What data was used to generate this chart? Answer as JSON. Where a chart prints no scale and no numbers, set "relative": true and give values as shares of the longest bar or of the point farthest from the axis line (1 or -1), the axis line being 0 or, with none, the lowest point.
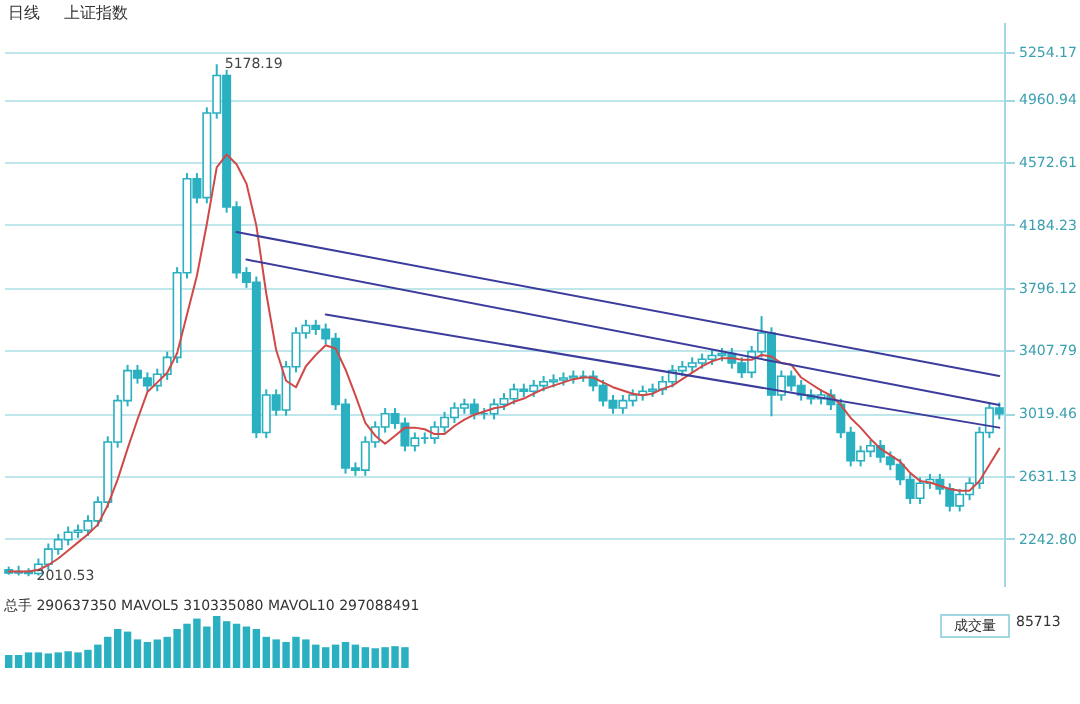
{
  "chart_data": [
    {
      "type": "candlestick",
      "title": "上证指数",
      "annotations": [
        "日线",
        "5178.19",
        "2010.53"
      ],
      "categories": [
        null,
        null,
        null,
        null,
        null,
        null,
        null,
        null,
        null,
        null,
        null,
        null,
        null,
        null,
        null,
        null,
        null,
        null,
        null,
        null,
        null,
        null,
        null,
        null,
        null,
        null,
        null,
        null,
        null,
        null,
        null,
        null,
        null,
        null,
        null,
        null,
        null,
        null,
        null,
        null,
        null,
        null,
        null,
        null,
        null,
        null,
        null,
        null,
        null,
        null,
        null,
        null,
        null,
        null,
        null,
        null,
        null,
        null,
        null,
        null,
        null,
        null,
        null,
        null,
        null,
        null,
        null,
        null,
        null,
        null,
        null,
        null,
        null,
        null,
        null,
        null,
        null,
        null,
        null,
        null,
        null,
        null,
        null,
        null,
        null,
        null,
        null,
        null,
        null,
        null,
        null,
        null,
        null,
        null,
        null,
        null,
        null,
        null,
        null,
        null,
        null
      ],
      "series": [
        {
          "type": "candlestick",
          "color": "#2ab0c0",
          "ohlc": [
            [
              2050,
              2070,
              2020,
              2030
            ],
            [
              2030,
              2075,
              2015,
              2040
            ],
            [
              2040,
              2060,
              2010.53,
              2027
            ],
            [
              2027,
              2120,
              2015,
              2085
            ],
            [
              2085,
              2213,
              2050,
              2178
            ],
            [
              2178,
              2272,
              2143,
              2237
            ],
            [
              2237,
              2318,
              2202,
              2283
            ],
            [
              2283,
              2330,
              2248,
              2295
            ],
            [
              2295,
              2388,
              2260,
              2353
            ],
            [
              2353,
              2504,
              2318,
              2469
            ],
            [
              2469,
              2876,
              2434,
              2841
            ],
            [
              2841,
              3132,
              2806,
              3097
            ],
            [
              3097,
              3318,
              3062,
              3283
            ],
            [
              3283,
              3318,
              3202,
              3237
            ],
            [
              3237,
              3272,
              3155,
              3190
            ],
            [
              3190,
              3295,
              3155,
              3260
            ],
            [
              3260,
              3400,
              3225,
              3365
            ],
            [
              3365,
              3923,
              3330,
              3888
            ],
            [
              3888,
              4505,
              3853,
              4470
            ],
            [
              4470,
              4505,
              4318,
              4353
            ],
            [
              4353,
              4912,
              4318,
              4877
            ],
            [
              4877,
              5178.19,
              4842,
              5109
            ],
            [
              5109,
              5144,
              4260,
              4295
            ],
            [
              4295,
              4330,
              3853,
              3888
            ],
            [
              3888,
              3923,
              3795,
              3830
            ],
            [
              3830,
              3865,
              2865,
              2900
            ],
            [
              2900,
              3167,
              2865,
              3132
            ],
            [
              3132,
              3167,
              3004,
              3039
            ],
            [
              3039,
              3342,
              3004,
              3307
            ],
            [
              3307,
              3551,
              3272,
              3516
            ],
            [
              3516,
              3597,
              3481,
              3562
            ],
            [
              3562,
              3597,
              3504,
              3539
            ],
            [
              3539,
              3574,
              3446,
              3481
            ],
            [
              3481,
              3516,
              3039,
              3074
            ],
            [
              3074,
              3109,
              2645,
              2680
            ],
            [
              2680,
              2715,
              2632,
              2667
            ],
            [
              2667,
              2876,
              2632,
              2841
            ],
            [
              2841,
              2969,
              2806,
              2934
            ],
            [
              2934,
              3051,
              2899,
              3016
            ],
            [
              3016,
              3051,
              2922,
              2957
            ],
            [
              2957,
              2992,
              2783,
              2818
            ],
            [
              2818,
              2900,
              2783,
              2865
            ],
            [
              2865,
              2900,
              2830,
              2865
            ],
            [
              2865,
              2969,
              2830,
              2934
            ],
            [
              2934,
              3028,
              2899,
              2993
            ],
            [
              2993,
              3086,
              2958,
              3051
            ],
            [
              3051,
              3109,
              3016,
              3074
            ],
            [
              3074,
              3109,
              2981,
              3016
            ],
            [
              3016,
              3051,
              2981,
              3016
            ],
            [
              3016,
              3109,
              2981,
              3074
            ],
            [
              3074,
              3144,
              3039,
              3109
            ],
            [
              3109,
              3202,
              3074,
              3167
            ],
            [
              3167,
              3202,
              3120,
              3155
            ],
            [
              3155,
              3225,
              3120,
              3190
            ],
            [
              3190,
              3249,
              3155,
              3214
            ],
            [
              3214,
              3260,
              3179,
              3225
            ],
            [
              3225,
              3272,
              3190,
              3237
            ],
            [
              3237,
              3283,
              3202,
              3248
            ],
            [
              3248,
              3283,
              3213,
              3248
            ],
            [
              3248,
              3283,
              3155,
              3190
            ],
            [
              3190,
              3225,
              3062,
              3097
            ],
            [
              3097,
              3132,
              3016,
              3051
            ],
            [
              3051,
              3132,
              3016,
              3097
            ],
            [
              3097,
              3167,
              3062,
              3132
            ],
            [
              3132,
              3190,
              3097,
              3155
            ],
            [
              3155,
              3202,
              3120,
              3167
            ],
            [
              3167,
              3249,
              3132,
              3214
            ],
            [
              3214,
              3318,
              3179,
              3283
            ],
            [
              3283,
              3342,
              3248,
              3307
            ],
            [
              3307,
              3365,
              3272,
              3330
            ],
            [
              3330,
              3388,
              3295,
              3353
            ],
            [
              3353,
              3411,
              3318,
              3376
            ],
            [
              3376,
              3423,
              3341,
              3388
            ],
            [
              3388,
              3423,
              3295,
              3330
            ],
            [
              3330,
              3365,
              3237,
              3272
            ],
            [
              3272,
              3435,
              3237,
              3400
            ],
            [
              3400,
              3620,
              3365,
              3516
            ],
            [
              3516,
              3551,
              3000,
              3132
            ],
            [
              3132,
              3283,
              3097,
              3248
            ],
            [
              3248,
              3283,
              3155,
              3190
            ],
            [
              3190,
              3225,
              3097,
              3132
            ],
            [
              3132,
              3167,
              3074,
              3109
            ],
            [
              3109,
              3167,
              3074,
              3132
            ],
            [
              3132,
              3167,
              3039,
              3074
            ],
            [
              3074,
              3109,
              2865,
              2900
            ],
            [
              2900,
              2935,
              2690,
              2725
            ],
            [
              2725,
              2818,
              2690,
              2783
            ],
            [
              2783,
              2853,
              2748,
              2818
            ],
            [
              2818,
              2853,
              2713,
              2748
            ],
            [
              2748,
              2783,
              2667,
              2702
            ],
            [
              2702,
              2737,
              2574,
              2609
            ],
            [
              2609,
              2644,
              2458,
              2493
            ],
            [
              2493,
              2621,
              2458,
              2586
            ],
            [
              2586,
              2644,
              2551,
              2609
            ],
            [
              2609,
              2644,
              2516,
              2551
            ],
            [
              2551,
              2586,
              2411,
              2446
            ],
            [
              2446,
              2551,
              2411,
              2516
            ],
            [
              2516,
              2621,
              2481,
              2586
            ],
            [
              2586,
              2935,
              2551,
              2900
            ],
            [
              2900,
              3086,
              2865,
              3051
            ],
            [
              3051,
              3086,
              2981,
              3016
            ]
          ]
        },
        {
          "type": "line",
          "color": "#d04848",
          "values": [
            2040,
            2040,
            2040,
            2050,
            2080,
            2120,
            2170,
            2220,
            2270,
            2330,
            2450,
            2610,
            2800,
            2980,
            3150,
            3210,
            3270,
            3390,
            3630,
            3870,
            4190,
            4540,
            4620,
            4560,
            4440,
            4180,
            3760,
            3410,
            3220,
            3180,
            3310,
            3380,
            3440,
            3420,
            3290,
            3130,
            2960,
            2880,
            2830,
            2880,
            2930,
            2930,
            2920,
            2890,
            2890,
            2940,
            2980,
            3010,
            3030,
            3050,
            3060,
            3090,
            3110,
            3140,
            3170,
            3190,
            3210,
            3230,
            3240,
            3240,
            3210,
            3180,
            3160,
            3140,
            3130,
            3140,
            3170,
            3190,
            3230,
            3270,
            3310,
            3340,
            3360,
            3360,
            3350,
            3350,
            3380,
            3370,
            3330,
            3320,
            3240,
            3200,
            3160,
            3130,
            3070,
            2990,
            2930,
            2860,
            2800,
            2760,
            2720,
            2650,
            2600,
            2590,
            2570,
            2550,
            2540,
            2540,
            2600,
            2700,
            2800
          ]
        },
        {
          "type": "line",
          "color": "#3c3c9c",
          "values": [
            null,
            null,
            null,
            null,
            null,
            null,
            null,
            null,
            null,
            null,
            null,
            null,
            null,
            null,
            null,
            null,
            null,
            null,
            null,
            null,
            null,
            null,
            null,
            4140,
            null,
            null,
            null,
            null,
            null,
            null,
            null,
            null,
            null,
            null,
            null,
            null,
            null,
            null,
            null,
            null,
            null,
            null,
            null,
            null,
            null,
            null,
            null,
            null,
            null,
            null,
            null,
            null,
            null,
            null,
            null,
            null,
            null,
            null,
            null,
            null,
            null,
            null,
            null,
            null,
            null,
            null,
            null,
            null,
            null,
            null,
            null,
            null,
            null,
            null,
            null,
            null,
            null,
            null,
            null,
            null,
            null,
            null,
            null,
            null,
            null,
            null,
            null,
            null,
            null,
            null,
            null,
            null,
            null,
            null,
            null,
            null,
            null,
            null,
            null,
            null,
            3250
          ]
        },
        {
          "type": "line",
          "color": "#3c3c9c",
          "values": [
            null,
            null,
            null,
            null,
            null,
            null,
            null,
            null,
            null,
            null,
            null,
            null,
            null,
            null,
            null,
            null,
            null,
            null,
            null,
            null,
            null,
            null,
            null,
            null,
            3970,
            null,
            null,
            null,
            null,
            null,
            null,
            null,
            null,
            null,
            null,
            null,
            null,
            null,
            null,
            null,
            null,
            null,
            null,
            null,
            null,
            null,
            null,
            null,
            null,
            null,
            null,
            null,
            null,
            null,
            null,
            null,
            null,
            null,
            null,
            null,
            null,
            null,
            null,
            null,
            null,
            null,
            null,
            null,
            null,
            null,
            null,
            null,
            null,
            null,
            null,
            null,
            null,
            null,
            null,
            null,
            null,
            null,
            null,
            null,
            null,
            null,
            null,
            null,
            null,
            null,
            null,
            null,
            null,
            null,
            null,
            null,
            null,
            null,
            null,
            null,
            3070
          ]
        },
        {
          "type": "line",
          "color": "#3c3c9c",
          "values": [
            null,
            null,
            null,
            null,
            null,
            null,
            null,
            null,
            null,
            null,
            null,
            null,
            null,
            null,
            null,
            null,
            null,
            null,
            null,
            null,
            null,
            null,
            null,
            null,
            null,
            null,
            null,
            null,
            null,
            null,
            null,
            null,
            3630,
            null,
            null,
            null,
            null,
            null,
            null,
            null,
            null,
            null,
            null,
            null,
            null,
            null,
            null,
            null,
            null,
            null,
            null,
            null,
            null,
            null,
            null,
            null,
            null,
            null,
            null,
            null,
            null,
            null,
            null,
            null,
            null,
            null,
            null,
            null,
            null,
            null,
            null,
            null,
            null,
            null,
            null,
            null,
            null,
            null,
            null,
            null,
            null,
            null,
            null,
            null,
            null,
            null,
            null,
            null,
            null,
            null,
            null,
            null,
            null,
            null,
            null,
            null,
            null,
            null,
            null,
            null,
            2930
          ]
        }
      ],
      "ylim": [
        1950,
        5440
      ],
      "yticks": [
        {
          "value": 2242.8,
          "label": "2242.80"
        },
        2631.13,
        3019.46,
        3407.79,
        3796.12,
        4184.23,
        4572.61,
        4960.94,
        5254.17
      ],
      "grid": "y",
      "tick_labels": "y"
    },
    {
      "type": "bar",
      "relative": true,
      "color": "#2ab0c0",
      "annotations": [
        "总手 290637350 MAVOL5 310335080 MAVOL10 297088491",
        "成交量",
        "85713"
      ],
      "categories": [
        null,
        null,
        null,
        null,
        null,
        null,
        null,
        null,
        null,
        null,
        null,
        null,
        null,
        null,
        null,
        null,
        null,
        null,
        null,
        null,
        null,
        null,
        null,
        null,
        null,
        null,
        null,
        null,
        null,
        null,
        null,
        null,
        null,
        null,
        null,
        null,
        null,
        null,
        null,
        null,
        null,
        null,
        null,
        null,
        null,
        null,
        null,
        null,
        null,
        null,
        null,
        null,
        null,
        null,
        null,
        null,
        null,
        null,
        null,
        null,
        null,
        null,
        null,
        null,
        null,
        null,
        null,
        null,
        null,
        null,
        null,
        null,
        null,
        null,
        null,
        null,
        null,
        null,
        null,
        null,
        null,
        null,
        null,
        null,
        null,
        null,
        null,
        null,
        null,
        null,
        null,
        null,
        null,
        null,
        null,
        null,
        null,
        null,
        null,
        null,
        null
      ],
      "values": [
        0.25,
        0.25,
        0.3,
        0.3,
        0.28,
        0.3,
        0.32,
        0.3,
        0.35,
        0.45,
        0.6,
        0.75,
        0.7,
        0.55,
        0.5,
        0.55,
        0.6,
        0.75,
        0.85,
        0.95,
        0.8,
        1.0,
        0.9,
        0.85,
        0.8,
        0.75,
        0.6,
        0.55,
        0.5,
        0.6,
        0.55,
        0.45,
        0.4,
        0.45,
        0.5,
        0.45,
        0.4,
        0.38,
        0.4,
        0.42,
        0.4,
        null,
        null,
        null,
        null,
        null,
        null,
        null,
        null,
        null,
        null,
        null,
        null,
        null,
        null,
        null,
        null,
        null,
        null,
        null,
        null,
        null,
        null,
        null,
        null,
        null,
        null,
        null,
        null,
        null,
        null,
        null,
        null,
        null,
        null,
        null,
        null,
        null,
        null,
        null,
        null,
        null,
        null,
        null,
        null,
        null,
        null,
        null,
        null,
        null,
        null,
        null,
        null,
        null,
        null,
        null,
        null,
        null,
        null,
        null,
        null
      ],
      "tick_labels": false
    }
  ]
}
